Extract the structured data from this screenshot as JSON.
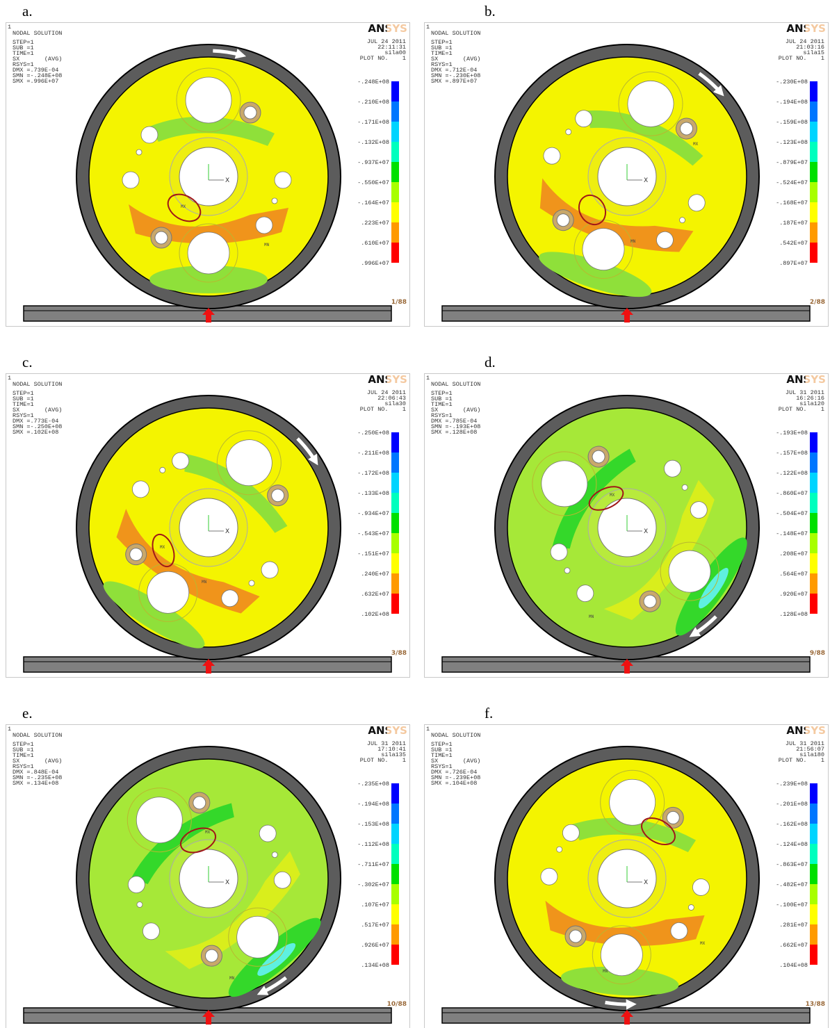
{
  "panels": [
    {
      "label": "a.",
      "window": "1",
      "title": "NODAL SOLUTION",
      "info": [
        "STEP=1",
        "SUB =1",
        "TIME=1",
        "SX       (AVG)",
        "RSYS=1",
        "DMX =.739E-04",
        "SMN =-.248E+08",
        "SMX =.996E+07"
      ],
      "logo": "ANSYS",
      "stamp": [
        "JUL 24 2011",
        "22:11:31",
        "sila00",
        "PLOT NO.    1"
      ],
      "legend": [
        "-.248E+08",
        "-.210E+08",
        "-.171E+08",
        "-.132E+08",
        "-.937E+07",
        "-.550E+07",
        "-.164E+07",
        ".223E+07",
        ".610E+07",
        ".996E+07"
      ],
      "markers": [
        "MX",
        "MN"
      ],
      "triad": "X",
      "frame": "1/88"
    },
    {
      "label": "b.",
      "window": "1",
      "title": "NODAL SOLUTION",
      "info": [
        "STEP=1",
        "SUB =1",
        "TIME=1",
        "SX       (AVG)",
        "RSYS=1",
        "DMX =.712E-04",
        "SMN =-.230E+08",
        "SMX =.897E+07"
      ],
      "logo": "ANSYS",
      "stamp": [
        "JUL 24 2011",
        "21:03:16",
        "sila15",
        "PLOT NO.    1"
      ],
      "legend": [
        "-.230E+08",
        "-.194E+08",
        "-.159E+08",
        "-.123E+08",
        "-.879E+07",
        "-.524E+07",
        "-.168E+07",
        ".187E+07",
        ".542E+07",
        ".897E+07"
      ],
      "markers": [
        "MX",
        "MN"
      ],
      "triad": "X",
      "frame": "2/88"
    },
    {
      "label": "c.",
      "window": "1",
      "title": "NODAL SOLUTION",
      "info": [
        "STEP=1",
        "SUB =1",
        "TIME=1",
        "SX       (AVG)",
        "RSYS=1",
        "DMX =.773E-04",
        "SMN =-.250E+08",
        "SMX =.102E+08"
      ],
      "logo": "ANSYS",
      "stamp": [
        "JUL 24 2011",
        "22:06:43",
        "sila30",
        "PLOT NO.    1"
      ],
      "legend": [
        "-.250E+08",
        "-.211E+08",
        "-.172E+08",
        "-.133E+08",
        "-.934E+07",
        "-.543E+07",
        "-.151E+07",
        ".240E+07",
        ".632E+07",
        ".102E+08"
      ],
      "markers": [
        "MX",
        "MN"
      ],
      "triad": "X",
      "frame": "3/88"
    },
    {
      "label": "d.",
      "window": "1",
      "title": "NODAL SOLUTION",
      "info": [
        "STEP=1",
        "SUB =1",
        "TIME=1",
        "SX       (AVG)",
        "RSYS=1",
        "DMX =.785E-04",
        "SMN =-.193E+08",
        "SMX =.128E+08"
      ],
      "logo": "ANSYS",
      "stamp": [
        "JUL 31 2011",
        "16:26:16",
        "sila120",
        "PLOT NO.    1"
      ],
      "legend": [
        "-.193E+08",
        "-.157E+08",
        "-.122E+08",
        "-.860E+07",
        "-.504E+07",
        "-.148E+07",
        ".208E+07",
        ".564E+07",
        ".920E+07",
        ".128E+08"
      ],
      "markers": [
        "MX",
        "MN"
      ],
      "triad": "X",
      "frame": "9/88"
    },
    {
      "label": "e.",
      "window": "1",
      "title": "NODAL SOLUTION",
      "info": [
        "STEP=1",
        "SUB =1",
        "TIME=1",
        "SX       (AVG)",
        "RSYS=1",
        "DMX =.848E-04",
        "SMN =-.235E+08",
        "SMX =.134E+08"
      ],
      "logo": "ANSYS",
      "stamp": [
        "JUL 31 2011",
        "17:10:41",
        "sila135",
        "PLOT NO.    1"
      ],
      "legend": [
        "-.235E+08",
        "-.194E+08",
        "-.153E+08",
        "-.112E+08",
        "-.711E+07",
        "-.302E+07",
        ".107E+07",
        ".517E+07",
        ".926E+07",
        ".134E+08"
      ],
      "markers": [
        "MX",
        "MN"
      ],
      "triad": "X",
      "frame": "10/88"
    },
    {
      "label": "f.",
      "window": "1",
      "title": "NODAL SOLUTION",
      "info": [
        "STEP=1",
        "SUB =1",
        "TIME=1",
        "SX       (AVG)",
        "RSYS=1",
        "DMX =.726E-04",
        "SMN =-.239E+08",
        "SMX =.104E+08"
      ],
      "logo": "ANSYS",
      "stamp": [
        "JUL 31 2011",
        "21:56:07",
        "sila180",
        "PLOT NO.    1"
      ],
      "legend": [
        "-.239E+08",
        "-.201E+08",
        "-.162E+08",
        "-.124E+08",
        "-.863E+07",
        "-.482E+07",
        "-.100E+07",
        ".281E+07",
        ".662E+07",
        ".104E+08"
      ],
      "markers": [
        "MN",
        "MX"
      ],
      "triad": "X",
      "frame": "13/88"
    }
  ]
}
